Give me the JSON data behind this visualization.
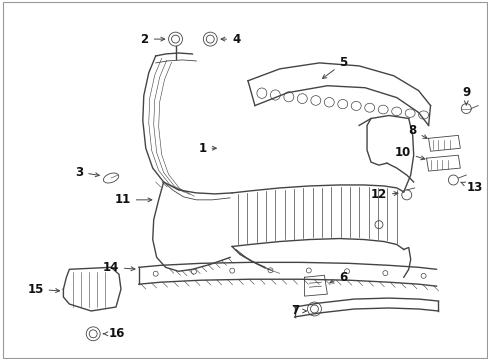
{
  "bg_color": "#ffffff",
  "line_color": "#444444",
  "label_color": "#111111",
  "font_size_labels": 8.5,
  "figsize": [
    4.9,
    3.6
  ],
  "dpi": 100,
  "border_color": "#999999"
}
